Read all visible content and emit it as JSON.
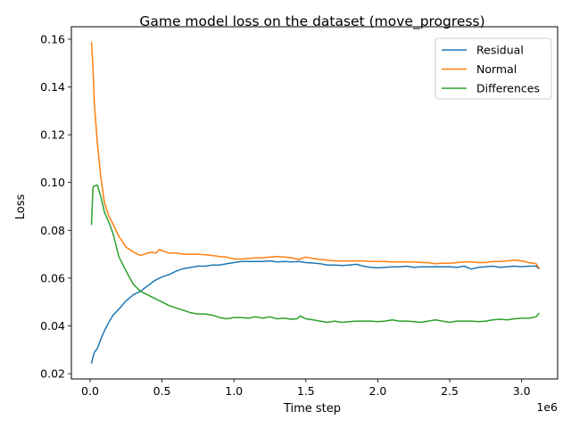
{
  "chart_data": {
    "type": "line",
    "title": "Game model loss on the dataset (move_progress)",
    "xlabel": "Time step",
    "ylabel": "Loss",
    "x_offset_text": "1e6",
    "xlim": [
      -130000,
      3250000
    ],
    "ylim": [
      0.0178,
      0.1652
    ],
    "xticks": [
      0,
      500000,
      1000000,
      1500000,
      2000000,
      2500000,
      3000000
    ],
    "xtick_labels": [
      "0.0",
      "0.5",
      "1.0",
      "1.5",
      "2.0",
      "2.5",
      "3.0"
    ],
    "yticks": [
      0.02,
      0.04,
      0.06,
      0.08,
      0.1,
      0.12,
      0.14,
      0.16
    ],
    "ytick_labels": [
      "0.02",
      "0.04",
      "0.06",
      "0.08",
      "0.10",
      "0.12",
      "0.14",
      "0.16"
    ],
    "grid": false,
    "legend_position": "top-right",
    "series": [
      {
        "name": "Residual",
        "color": "#1f77b4",
        "x": [
          10000,
          30000,
          50000,
          75000,
          100000,
          130000,
          160000,
          200000,
          250000,
          300000,
          350000,
          400000,
          450000,
          500000,
          550000,
          600000,
          650000,
          700000,
          750000,
          800000,
          850000,
          900000,
          950000,
          1000000,
          1050000,
          1100000,
          1150000,
          1200000,
          1250000,
          1300000,
          1350000,
          1400000,
          1450000,
          1500000,
          1550000,
          1600000,
          1650000,
          1700000,
          1750000,
          1800000,
          1850000,
          1900000,
          1950000,
          2000000,
          2050000,
          2100000,
          2150000,
          2200000,
          2250000,
          2300000,
          2350000,
          2400000,
          2450000,
          2500000,
          2550000,
          2600000,
          2650000,
          2700000,
          2750000,
          2800000,
          2850000,
          2900000,
          2950000,
          3000000,
          3050000,
          3100000,
          3120000
        ],
        "y": [
          0.0245,
          0.029,
          0.0305,
          0.0345,
          0.038,
          0.0415,
          0.0445,
          0.047,
          0.0505,
          0.053,
          0.0545,
          0.0568,
          0.059,
          0.0605,
          0.0615,
          0.063,
          0.064,
          0.0645,
          0.065,
          0.065,
          0.0655,
          0.0655,
          0.066,
          0.0665,
          0.067,
          0.067,
          0.067,
          0.067,
          0.0672,
          0.0668,
          0.067,
          0.0668,
          0.067,
          0.0665,
          0.0663,
          0.066,
          0.0655,
          0.0655,
          0.0653,
          0.0655,
          0.0658,
          0.065,
          0.0645,
          0.0643,
          0.0645,
          0.0647,
          0.0647,
          0.065,
          0.0645,
          0.0647,
          0.0647,
          0.0648,
          0.0647,
          0.0648,
          0.0645,
          0.065,
          0.0638,
          0.0645,
          0.0648,
          0.065,
          0.0645,
          0.0648,
          0.065,
          0.0648,
          0.065,
          0.065,
          0.064
        ]
      },
      {
        "name": "Normal",
        "color": "#ff7f0e",
        "x": [
          10000,
          20000,
          30000,
          50000,
          75000,
          100000,
          130000,
          160000,
          200000,
          250000,
          300000,
          350000,
          400000,
          430000,
          460000,
          480000,
          500000,
          550000,
          600000,
          650000,
          700000,
          750000,
          800000,
          850000,
          900000,
          950000,
          1000000,
          1050000,
          1100000,
          1150000,
          1200000,
          1250000,
          1300000,
          1350000,
          1400000,
          1450000,
          1500000,
          1550000,
          1600000,
          1650000,
          1700000,
          1750000,
          1800000,
          1850000,
          1900000,
          1950000,
          2000000,
          2050000,
          2100000,
          2150000,
          2200000,
          2250000,
          2300000,
          2350000,
          2400000,
          2450000,
          2500000,
          2550000,
          2600000,
          2650000,
          2700000,
          2750000,
          2800000,
          2850000,
          2900000,
          2950000,
          3000000,
          3050000,
          3100000,
          3120000
        ],
        "y": [
          0.1585,
          0.148,
          0.1325,
          0.117,
          0.102,
          0.0915,
          0.086,
          0.0825,
          0.0775,
          0.073,
          0.071,
          0.0695,
          0.0705,
          0.0708,
          0.0705,
          0.072,
          0.0715,
          0.0705,
          0.0705,
          0.07,
          0.07,
          0.07,
          0.0698,
          0.0695,
          0.069,
          0.0688,
          0.068,
          0.068,
          0.0682,
          0.0685,
          0.0685,
          0.0688,
          0.069,
          0.0688,
          0.0685,
          0.0678,
          0.0688,
          0.0682,
          0.0678,
          0.0675,
          0.0672,
          0.0672,
          0.0672,
          0.0672,
          0.0672,
          0.067,
          0.067,
          0.067,
          0.0668,
          0.0668,
          0.0668,
          0.0668,
          0.0665,
          0.0665,
          0.066,
          0.0662,
          0.0662,
          0.0665,
          0.0668,
          0.0668,
          0.0665,
          0.0665,
          0.067,
          0.067,
          0.0672,
          0.0675,
          0.0672,
          0.0665,
          0.066,
          0.0643
        ]
      },
      {
        "name": "Differences",
        "color": "#2ca02c",
        "x": [
          10000,
          20000,
          30000,
          50000,
          75000,
          100000,
          130000,
          160000,
          200000,
          250000,
          300000,
          350000,
          400000,
          450000,
          500000,
          550000,
          600000,
          650000,
          700000,
          750000,
          800000,
          850000,
          900000,
          950000,
          1000000,
          1050000,
          1100000,
          1150000,
          1200000,
          1250000,
          1300000,
          1350000,
          1400000,
          1440000,
          1460000,
          1500000,
          1550000,
          1600000,
          1650000,
          1700000,
          1750000,
          1800000,
          1850000,
          1900000,
          1950000,
          2000000,
          2050000,
          2100000,
          2150000,
          2200000,
          2250000,
          2300000,
          2350000,
          2400000,
          2450000,
          2500000,
          2550000,
          2600000,
          2650000,
          2700000,
          2750000,
          2800000,
          2850000,
          2900000,
          2950000,
          3000000,
          3050000,
          3100000,
          3120000
        ],
        "y": [
          0.0825,
          0.098,
          0.0985,
          0.099,
          0.094,
          0.0875,
          0.0835,
          0.0785,
          0.069,
          0.063,
          0.0575,
          0.0545,
          0.053,
          0.0515,
          0.05,
          0.0485,
          0.0475,
          0.0465,
          0.0455,
          0.045,
          0.045,
          0.0445,
          0.0435,
          0.043,
          0.0435,
          0.0435,
          0.0432,
          0.0438,
          0.0432,
          0.0438,
          0.043,
          0.0432,
          0.0428,
          0.043,
          0.0442,
          0.043,
          0.0425,
          0.042,
          0.0415,
          0.042,
          0.0415,
          0.0418,
          0.042,
          0.042,
          0.042,
          0.0418,
          0.042,
          0.0425,
          0.042,
          0.042,
          0.0418,
          0.0415,
          0.042,
          0.0425,
          0.042,
          0.0415,
          0.042,
          0.042,
          0.042,
          0.0418,
          0.042,
          0.0425,
          0.0428,
          0.0425,
          0.043,
          0.0432,
          0.0432,
          0.0438,
          0.0452
        ]
      }
    ]
  }
}
